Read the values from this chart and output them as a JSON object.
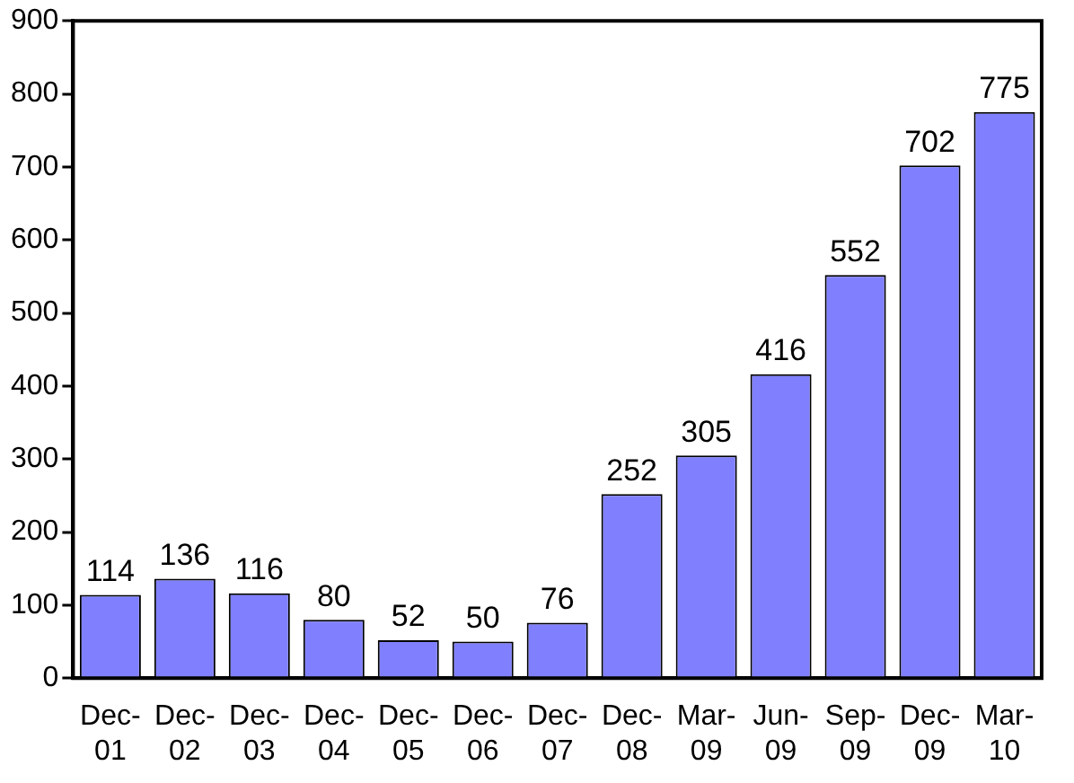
{
  "chart_data": {
    "type": "bar",
    "categories": [
      "Dec-01",
      "Dec-02",
      "Dec-03",
      "Dec-04",
      "Dec-05",
      "Dec-06",
      "Dec-07",
      "Dec-08",
      "Mar-09",
      "Jun-09",
      "Sep-09",
      "Dec-09",
      "Mar-10"
    ],
    "values": [
      114,
      136,
      116,
      80,
      52,
      50,
      76,
      252,
      305,
      416,
      552,
      702,
      775
    ],
    "color": "#8080ff",
    "ylim": [
      0,
      900
    ],
    "yticks": [
      0,
      100,
      200,
      300,
      400,
      500,
      600,
      700,
      800,
      900
    ],
    "grid": false,
    "legend": false,
    "data_labels": true
  }
}
